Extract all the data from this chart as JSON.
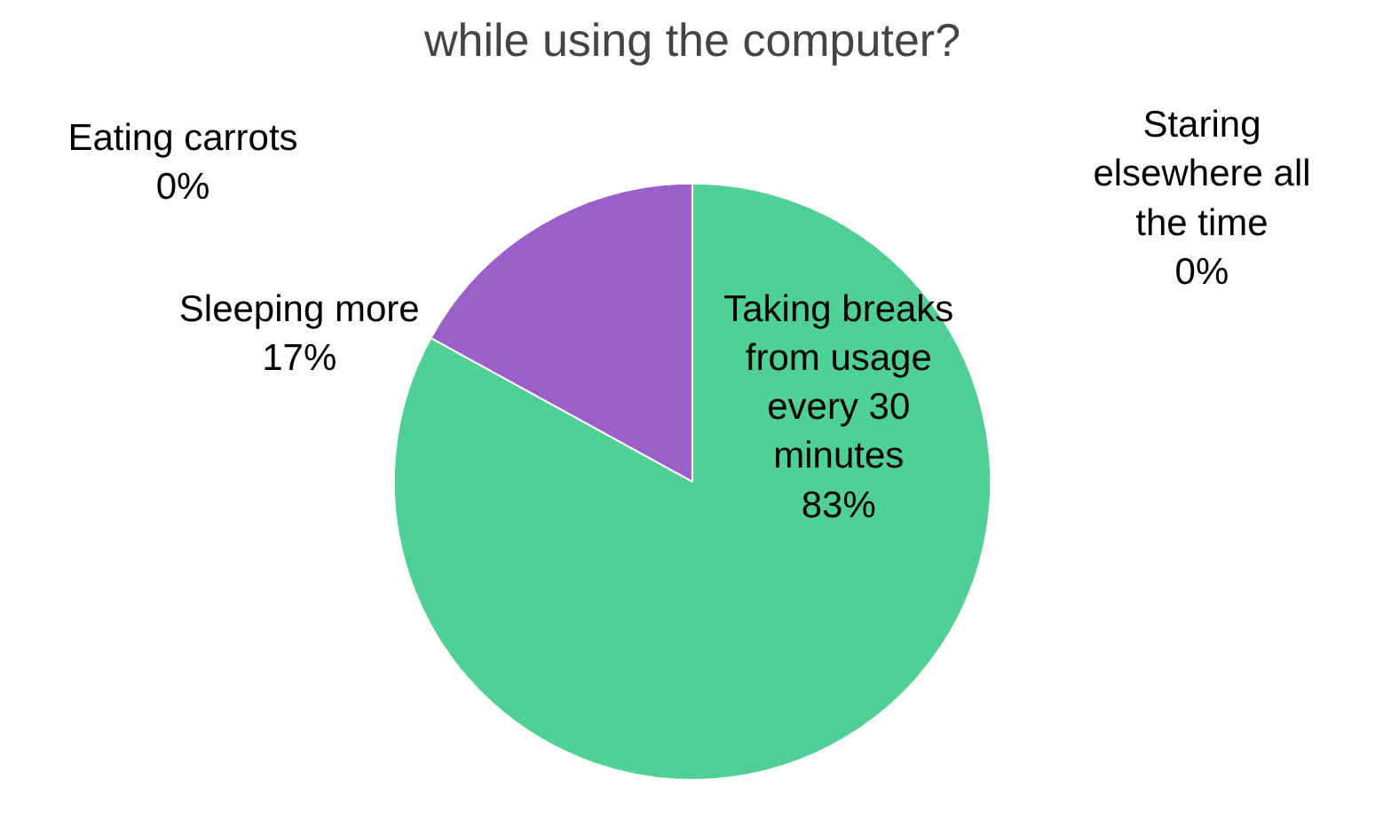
{
  "chart_data": {
    "type": "pie",
    "title": "while using the computer?",
    "categories": [
      "Taking breaks from usage every 30 minutes",
      "Sleeping more",
      "Eating carrots",
      "Staring elsewhere all the time"
    ],
    "values": [
      83,
      17,
      0,
      0
    ],
    "colors": [
      "#4fd094",
      "#9b5fc9",
      "#d9d9f0",
      "#8fb4e3"
    ],
    "value_labels": [
      "83%",
      "17%",
      "0%",
      "0%"
    ],
    "legend": false
  }
}
